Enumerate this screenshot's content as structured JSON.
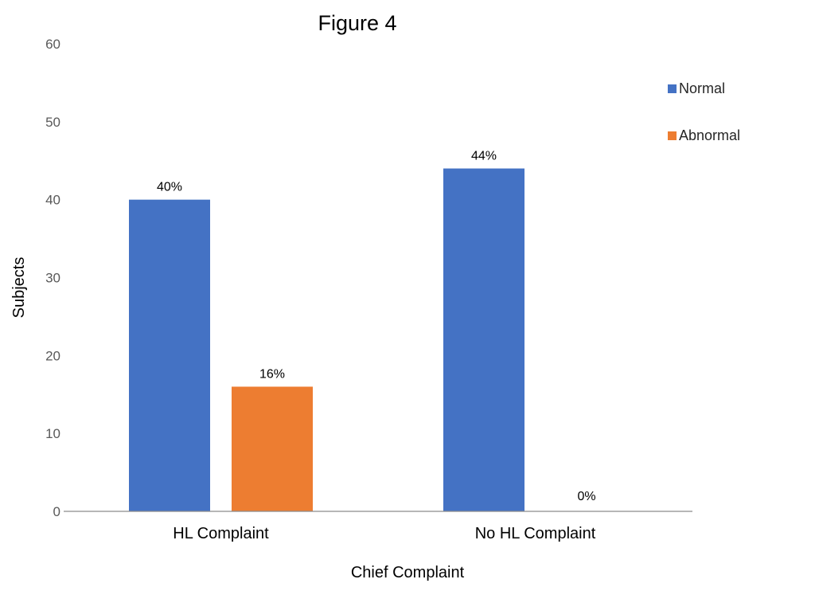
{
  "chart_data": {
    "type": "bar",
    "title": "Figure 4",
    "xlabel": "Chief Complaint",
    "ylabel": "Subjects",
    "categories": [
      "HL Complaint",
      "No HL Complaint"
    ],
    "series": [
      {
        "name": "Normal",
        "color": "#4472C4",
        "values": [
          40,
          44
        ],
        "labels": [
          "40%",
          "44%"
        ]
      },
      {
        "name": "Abnormal",
        "color": "#ED7D31",
        "values": [
          16,
          0
        ],
        "labels": [
          "16%",
          "0%"
        ]
      }
    ],
    "ylim": [
      0,
      60
    ],
    "yticks": [
      0,
      10,
      20,
      30,
      40,
      50,
      60
    ],
    "grid": false,
    "legend_position": "top-right"
  }
}
